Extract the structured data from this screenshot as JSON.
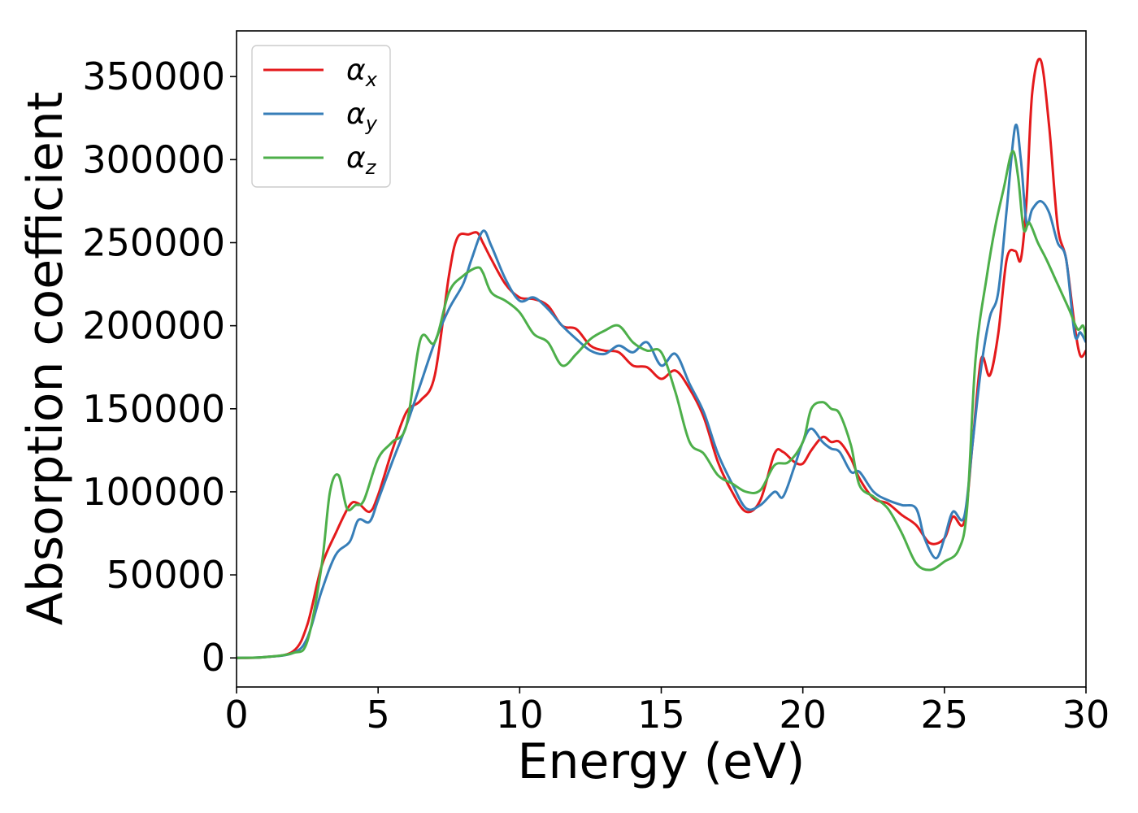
{
  "chart_data": {
    "type": "line",
    "xlabel": "Energy (eV)",
    "ylabel": "Absorption coefficient",
    "xlim": [
      0,
      30
    ],
    "ylim": [
      -17500,
      377500
    ],
    "xticks": [
      0,
      5,
      10,
      15,
      20,
      25,
      30
    ],
    "xtick_labels": [
      "0",
      "5",
      "10",
      "15",
      "20",
      "25",
      "30"
    ],
    "yticks": [
      0,
      50000,
      100000,
      150000,
      200000,
      250000,
      300000,
      350000
    ],
    "ytick_labels": [
      "0",
      "50000",
      "100000",
      "150000",
      "200000",
      "250000",
      "300000",
      "350000"
    ],
    "grid": false,
    "legend_position": "upper-left",
    "series": [
      {
        "name": "αx",
        "symbol": "α",
        "subscript": "x",
        "color": "#e41a1c",
        "x": [
          0,
          1,
          2,
          2.5,
          3,
          3.5,
          4,
          4.3,
          4.7,
          5,
          5.5,
          6,
          6.5,
          7,
          7.5,
          7.8,
          8.2,
          8.5,
          8.7,
          9,
          9.5,
          10,
          10.5,
          11,
          11.5,
          12,
          12.5,
          13,
          13.5,
          14,
          14.5,
          15,
          15.5,
          16,
          16.5,
          17,
          17.5,
          18,
          18.5,
          19,
          19.3,
          19.7,
          20,
          20.3,
          20.7,
          21,
          21.3,
          21.7,
          22,
          22.5,
          23,
          23.5,
          24,
          24.5,
          25,
          25.3,
          25.7,
          26,
          26.3,
          26.6,
          26.9,
          27.2,
          27.5,
          27.7,
          27.9,
          28.1,
          28.4,
          28.7,
          29,
          29.3,
          29.6,
          29.8,
          30
        ],
        "y": [
          0,
          500,
          4000,
          20000,
          55000,
          75000,
          92000,
          93000,
          88000,
          98000,
          125000,
          148000,
          155000,
          170000,
          230000,
          253000,
          255000,
          256000,
          250000,
          240000,
          225000,
          217000,
          216000,
          212000,
          200000,
          198000,
          188000,
          185000,
          184000,
          176000,
          175000,
          168000,
          173000,
          162000,
          145000,
          118000,
          100000,
          88000,
          95000,
          123000,
          124000,
          118000,
          117000,
          125000,
          133000,
          130000,
          130000,
          120000,
          108000,
          96000,
          93000,
          86000,
          80000,
          69000,
          72000,
          85000,
          82000,
          130000,
          180000,
          170000,
          195000,
          240000,
          245000,
          240000,
          275000,
          340000,
          360000,
          320000,
          260000,
          240000,
          200000,
          182000,
          185000
        ]
      },
      {
        "name": "αy",
        "symbol": "α",
        "subscript": "y",
        "color": "#377eb8",
        "x": [
          0,
          1,
          2,
          2.5,
          3,
          3.5,
          4,
          4.3,
          4.7,
          5,
          5.5,
          6,
          6.5,
          7,
          7.5,
          8,
          8.3,
          8.7,
          9,
          9.5,
          10,
          10.5,
          11,
          11.5,
          12,
          12.5,
          13,
          13.5,
          14,
          14.5,
          15,
          15.5,
          16,
          16.5,
          17,
          17.5,
          18,
          18.5,
          19,
          19.3,
          19.7,
          20,
          20.3,
          20.7,
          21,
          21.3,
          21.7,
          22,
          22.5,
          23,
          23.5,
          24,
          24.3,
          24.7,
          25,
          25.3,
          25.7,
          26,
          26.3,
          26.6,
          26.9,
          27.2,
          27.5,
          27.7,
          27.9,
          28.1,
          28.4,
          28.7,
          29,
          29.3,
          29.6,
          29.8,
          30
        ],
        "y": [
          0,
          500,
          3000,
          12000,
          40000,
          62000,
          70000,
          83000,
          82000,
          95000,
          118000,
          140000,
          165000,
          190000,
          210000,
          225000,
          240000,
          257000,
          248000,
          228000,
          215000,
          217000,
          210000,
          200000,
          192000,
          185000,
          183000,
          188000,
          184000,
          190000,
          176000,
          183000,
          165000,
          148000,
          123000,
          105000,
          90000,
          92000,
          100000,
          97000,
          115000,
          130000,
          138000,
          130000,
          126000,
          124000,
          112000,
          112000,
          100000,
          95000,
          92000,
          90000,
          72000,
          60000,
          72000,
          88000,
          85000,
          130000,
          175000,
          205000,
          220000,
          270000,
          320000,
          300000,
          262000,
          270000,
          275000,
          268000,
          250000,
          240000,
          195000,
          196000,
          190000
        ]
      },
      {
        "name": "αz",
        "symbol": "α",
        "subscript": "z",
        "color": "#4daf4a",
        "x": [
          0,
          1,
          2,
          2.5,
          3,
          3.3,
          3.6,
          3.9,
          4.2,
          4.5,
          5,
          5.5,
          6,
          6.5,
          7,
          7.5,
          8,
          8.5,
          8.7,
          9,
          9.5,
          10,
          10.5,
          11,
          11.5,
          12,
          12.5,
          13,
          13.5,
          14,
          14.5,
          15,
          15.5,
          16,
          16.5,
          17,
          17.5,
          18,
          18.5,
          19,
          19.5,
          20,
          20.3,
          20.7,
          21,
          21.3,
          21.7,
          22,
          22.5,
          23,
          23.5,
          24,
          24.5,
          25,
          25.5,
          25.8,
          26.1,
          26.5,
          26.8,
          27.1,
          27.4,
          27.6,
          27.8,
          28,
          28.3,
          28.6,
          29,
          29.4,
          29.7,
          29.9,
          30
        ],
        "y": [
          0,
          500,
          3000,
          10000,
          55000,
          100000,
          110000,
          90000,
          92000,
          95000,
          120000,
          130000,
          140000,
          192000,
          190000,
          220000,
          230000,
          235000,
          232000,
          220000,
          215000,
          208000,
          195000,
          190000,
          176000,
          183000,
          192000,
          197000,
          200000,
          190000,
          185000,
          184000,
          160000,
          130000,
          123000,
          110000,
          105000,
          100000,
          101000,
          116000,
          118000,
          130000,
          150000,
          154000,
          150000,
          147000,
          128000,
          104000,
          97000,
          90000,
          75000,
          57000,
          53000,
          58000,
          65000,
          90000,
          180000,
          230000,
          260000,
          283000,
          305000,
          290000,
          258000,
          262000,
          250000,
          240000,
          225000,
          210000,
          198000,
          200000,
          192000
        ]
      }
    ]
  }
}
